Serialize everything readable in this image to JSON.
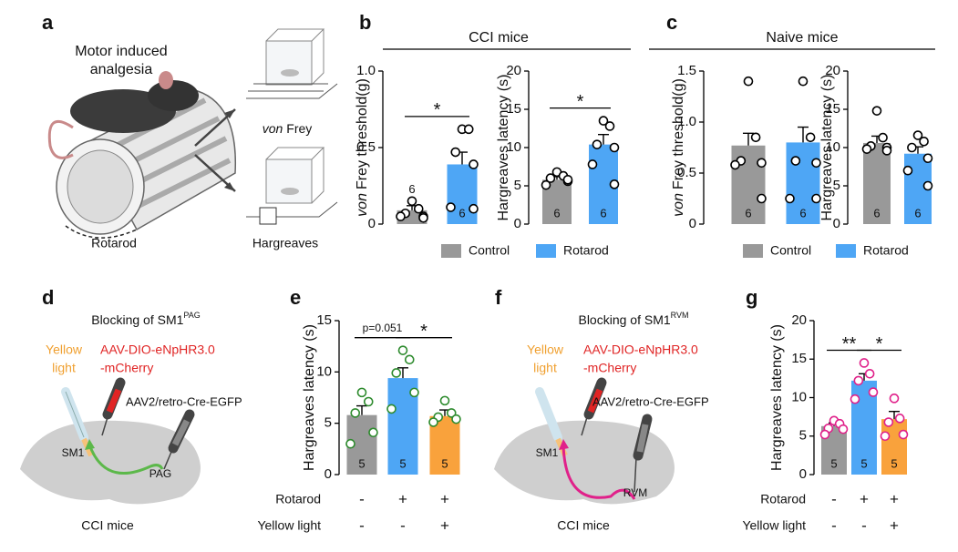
{
  "panel_labels": [
    "a",
    "b",
    "c",
    "d",
    "e",
    "f",
    "g"
  ],
  "headers": [
    "CCI mice",
    "Naive mice"
  ],
  "illustration_a": {
    "title": [
      "Motor induced",
      "analgesia"
    ],
    "rotarod": "Rotarod",
    "von_frey": {
      "italic": "von",
      "text": "Frey"
    },
    "hargreaves": "Hargreaves"
  },
  "illustration_d": {
    "title": "Blocking of SM1",
    "title_sup": "PAG",
    "light": [
      "Yellow",
      "light"
    ],
    "virus": [
      "AAV-DIO-eNpHR3.0",
      "-mCherry"
    ],
    "retro": "AAV2/retro-Cre-EGFP",
    "source": "SM1",
    "target": "PAG",
    "caption": "CCI mice"
  },
  "illustration_f": {
    "title": "Blocking of SM1",
    "title_sup": "RVM",
    "light": [
      "Yellow",
      "light"
    ],
    "virus": [
      "AAV-DIO-eNpHR3.0",
      "-mCherry"
    ],
    "retro": "AAV2/retro-Cre-EGFP",
    "source": "SM1",
    "target": "RVM",
    "caption": "CCI mice"
  },
  "chart_data": [
    {
      "type": "bar",
      "categories": [
        "Control",
        "Rotarod"
      ],
      "values": [
        0.09,
        0.39
      ],
      "errors": [
        0.03,
        0.08
      ],
      "points": [
        [
          0.15,
          0.1,
          0.07,
          0.05,
          0.05,
          0.04
        ],
        [
          0.62,
          0.62,
          0.47,
          0.39,
          0.11,
          0.1
        ]
      ],
      "n": [
        6,
        6
      ],
      "significance": [
        "*"
      ],
      "colors": [
        "#999999",
        "#4ea6f5"
      ],
      "point_color": "#000000",
      "ylabel": {
        "italic": "von",
        "text": "Frey threshold(g)"
      },
      "ylim": [
        0,
        1
      ],
      "yticks": [
        0,
        0.5,
        {
          "value": 1,
          "label": "1.0"
        }
      ]
    },
    {
      "type": "bar",
      "values": [
        5.8,
        10.4
      ],
      "errors": [
        0.4,
        1.3
      ],
      "points": [
        [
          6.8,
          6.3,
          6,
          5.6,
          5.1,
          5.8
        ],
        [
          13.5,
          12.8,
          10.4,
          10,
          7.8,
          5.2
        ]
      ],
      "n": [
        6,
        6
      ],
      "significance": [
        "*"
      ],
      "colors": [
        "#999999",
        "#4ea6f5"
      ],
      "point_color": "#000000",
      "ylabel": "Hargreaves latency (s)",
      "ylim": [
        0,
        20
      ],
      "yticks": [
        0,
        5,
        10,
        15,
        20
      ]
    },
    {
      "type": "bar",
      "categories": [
        "Control",
        "Rotarod"
      ],
      "values": [
        0.77,
        0.8
      ],
      "errors": [
        0.12,
        0.15
      ],
      "points": [
        [
          1.4,
          0.85,
          0.62,
          0.6,
          0.58,
          0.25
        ],
        [
          1.4,
          0.85,
          0.62,
          0.6,
          0.25,
          0.25
        ]
      ],
      "n": [
        6,
        6
      ],
      "colors": [
        "#999999",
        "#4ea6f5"
      ],
      "point_color": "#000000",
      "ylabel": {
        "italic": "von",
        "text": "Frey threshold(g)"
      },
      "ylim": [
        0,
        1.5
      ],
      "yticks": [
        0,
        0.5,
        {
          "value": 1,
          "label": "1.0"
        },
        1.5
      ]
    },
    {
      "type": "bar",
      "values": [
        10.6,
        9.2
      ],
      "errors": [
        0.9,
        0.9
      ],
      "points": [
        [
          14.8,
          11.3,
          10.2,
          10,
          9.8,
          9.6
        ],
        [
          11.6,
          10.8,
          10,
          8.6,
          7,
          5
        ]
      ],
      "n": [
        6,
        6
      ],
      "colors": [
        "#999999",
        "#4ea6f5"
      ],
      "point_color": "#000000",
      "ylabel": "Hargreaves latency (s)",
      "ylim": [
        0,
        20
      ],
      "yticks": [
        0,
        5,
        10,
        15,
        20
      ]
    },
    {
      "type": "bar",
      "values": [
        5.8,
        9.4,
        5.7
      ],
      "errors": [
        0.9,
        1.0,
        0.6
      ],
      "points": [
        [
          8,
          7.1,
          6,
          4.1,
          3
        ],
        [
          12.1,
          11.2,
          9.9,
          8,
          6.4
        ],
        [
          7.2,
          6,
          5.6,
          5.4,
          5.1
        ]
      ],
      "n": [
        5,
        5,
        5
      ],
      "significance": [
        "p=0.051",
        "*"
      ],
      "colors": [
        "#999999",
        "#4ea6f5",
        "#f9a23c"
      ],
      "point_color": "#2e8b2e",
      "ylabel": "Hargreaves latency (s)",
      "ylim": [
        0,
        15
      ],
      "yticks": [
        0,
        5,
        10,
        15
      ],
      "conditions": [
        {
          "name": "Rotarod",
          "marks": [
            "-",
            "+",
            "+"
          ]
        },
        {
          "name": "Yellow light",
          "marks": [
            "-",
            "-",
            "+"
          ]
        }
      ]
    },
    {
      "type": "bar",
      "values": [
        6.3,
        12.2,
        7.2
      ],
      "errors": [
        0.4,
        0.9,
        1.0
      ],
      "points": [
        [
          7,
          6.6,
          6,
          5.9,
          5.2
        ],
        [
          14.5,
          13.1,
          12.2,
          10.7,
          9.8
        ],
        [
          9.9,
          7.3,
          6.8,
          5.2,
          5
        ]
      ],
      "n": [
        5,
        5,
        5
      ],
      "significance": [
        "**",
        "*"
      ],
      "colors": [
        "#999999",
        "#4ea6f5",
        "#f9a23c"
      ],
      "point_color": "#e0218a",
      "ylabel": "Hargreaves latency (s)",
      "ylim": [
        0,
        20
      ],
      "yticks": [
        0,
        5,
        10,
        15,
        20
      ],
      "conditions": [
        {
          "name": "Rotarod",
          "marks": [
            "-",
            "+",
            "+"
          ]
        },
        {
          "name": "Yellow light",
          "marks": [
            "-",
            "-",
            "+"
          ]
        }
      ]
    }
  ]
}
